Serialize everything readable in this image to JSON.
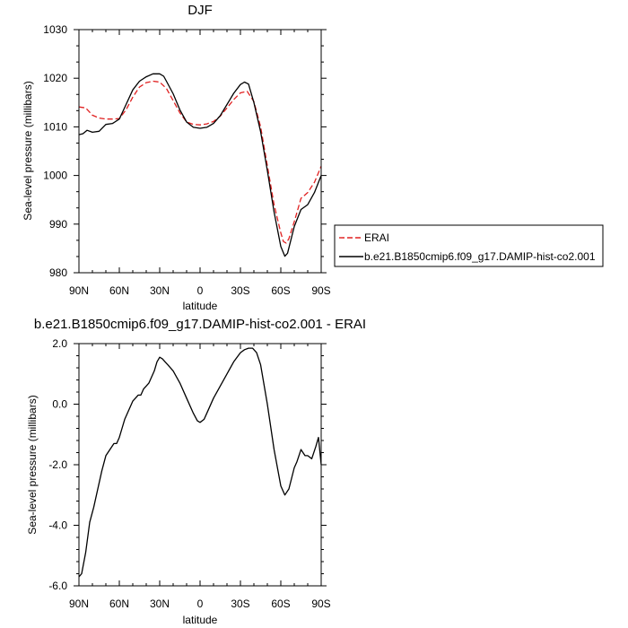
{
  "chart_data": [
    {
      "type": "line",
      "title": "DJF",
      "xlabel": "latitude",
      "ylabel": "Sea-level pressure (millibars)",
      "xlim": [
        90,
        -90
      ],
      "ylim": [
        980,
        1030
      ],
      "xticks": [
        90,
        60,
        30,
        0,
        -30,
        -60,
        -90
      ],
      "xtick_labels": [
        "90N",
        "60N",
        "30N",
        "0",
        "30S",
        "60S",
        "90S"
      ],
      "yticks": [
        980,
        990,
        1000,
        1010,
        1020,
        1030
      ],
      "ytick_labels": [
        "980",
        "990",
        "1000",
        "1010",
        "1020",
        "1030"
      ],
      "legend_position": "outside-right",
      "series": [
        {
          "name": "ERAI",
          "color": "#e02020",
          "dash": "dashed",
          "x": [
            90,
            85,
            80,
            75,
            70,
            65,
            60,
            55,
            50,
            45,
            40,
            35,
            30,
            25,
            20,
            15,
            10,
            5,
            0,
            -5,
            -10,
            -15,
            -20,
            -25,
            -30,
            -35,
            -40,
            -45,
            -50,
            -55,
            -60,
            -62,
            -64,
            -66,
            -70,
            -75,
            -80,
            -85,
            -90
          ],
          "y": [
            1014.1,
            1013.9,
            1012.4,
            1011.8,
            1011.6,
            1011.6,
            1011.7,
            1013.5,
            1016.1,
            1018.2,
            1019.1,
            1019.4,
            1019.2,
            1017.9,
            1015.4,
            1012.9,
            1011.0,
            1010.5,
            1010.4,
            1010.6,
            1011.1,
            1012.2,
            1013.9,
            1015.6,
            1017.0,
            1017.3,
            1015.2,
            1010.0,
            1002.0,
            994.0,
            988.2,
            986.4,
            986.1,
            987.0,
            990.5,
            995.3,
            996.5,
            998.6,
            1001.9
          ]
        },
        {
          "name": "b.e21.B1850cmip6.f09_g17.DAMIP-hist-co2.001",
          "color": "#000000",
          "dash": "solid",
          "x": [
            90,
            87,
            84,
            80,
            75,
            70,
            65,
            60,
            55,
            50,
            45,
            40,
            35,
            30,
            27,
            25,
            20,
            15,
            10,
            5,
            0,
            -5,
            -10,
            -15,
            -20,
            -25,
            -30,
            -33,
            -36,
            -40,
            -45,
            -50,
            -55,
            -60,
            -63,
            -65,
            -70,
            -75,
            -80,
            -85,
            -90
          ],
          "y": [
            1008.4,
            1008.6,
            1009.3,
            1008.9,
            1009.1,
            1010.5,
            1010.7,
            1011.6,
            1014.6,
            1017.6,
            1019.4,
            1020.3,
            1020.9,
            1020.9,
            1020.4,
            1019.4,
            1016.8,
            1013.5,
            1011.0,
            1009.9,
            1009.7,
            1009.9,
            1010.7,
            1012.3,
            1014.6,
            1016.9,
            1018.7,
            1019.2,
            1018.8,
            1015.0,
            1009.0,
            1001.0,
            992.5,
            985.4,
            983.4,
            984.0,
            989.5,
            993.0,
            994.0,
            996.5,
            1000.0
          ]
        }
      ]
    },
    {
      "type": "line",
      "title": "b.e21.B1850cmip6.f09_g17.DAMIP-hist-co2.001 - ERAI",
      "xlabel": "latitude",
      "ylabel": "Sea-level pressure (millibars)",
      "xlim": [
        90,
        -90
      ],
      "ylim": [
        -6.0,
        2.0
      ],
      "xticks": [
        90,
        60,
        30,
        0,
        -30,
        -60,
        -90
      ],
      "xtick_labels": [
        "90N",
        "60N",
        "30N",
        "0",
        "30S",
        "60S",
        "90S"
      ],
      "yticks": [
        -6.0,
        -4.0,
        -2.0,
        0.0,
        2.0
      ],
      "ytick_labels": [
        "-6.0",
        "-4.0",
        "-2.0",
        "0.0",
        "2.0"
      ],
      "series": [
        {
          "color": "#000000",
          "dash": "solid",
          "x": [
            90,
            88,
            85,
            82,
            79,
            76,
            73,
            70,
            67,
            64,
            62,
            60,
            58,
            56,
            54,
            52,
            50,
            48,
            46,
            44,
            42,
            40,
            38,
            36,
            34,
            32,
            30,
            28,
            26,
            24,
            20,
            15,
            10,
            5,
            2,
            0,
            -3,
            -6,
            -10,
            -15,
            -20,
            -25,
            -30,
            -33,
            -36,
            -39,
            -42,
            -45,
            -50,
            -55,
            -60,
            -63,
            -66,
            -70,
            -72,
            -75,
            -78,
            -80,
            -83,
            -86,
            -88,
            -90
          ],
          "y": [
            -5.7,
            -5.6,
            -4.9,
            -3.9,
            -3.4,
            -2.8,
            -2.2,
            -1.7,
            -1.5,
            -1.3,
            -1.3,
            -1.1,
            -0.8,
            -0.5,
            -0.3,
            -0.1,
            0.1,
            0.2,
            0.3,
            0.3,
            0.5,
            0.6,
            0.7,
            0.9,
            1.1,
            1.4,
            1.55,
            1.5,
            1.4,
            1.3,
            1.1,
            0.7,
            0.2,
            -0.3,
            -0.55,
            -0.6,
            -0.5,
            -0.2,
            0.2,
            0.6,
            1.0,
            1.4,
            1.7,
            1.8,
            1.85,
            1.85,
            1.7,
            1.3,
            0.0,
            -1.5,
            -2.7,
            -3.0,
            -2.8,
            -2.1,
            -1.9,
            -1.5,
            -1.7,
            -1.7,
            -1.8,
            -1.4,
            -1.1,
            -2.0
          ]
        }
      ]
    }
  ]
}
